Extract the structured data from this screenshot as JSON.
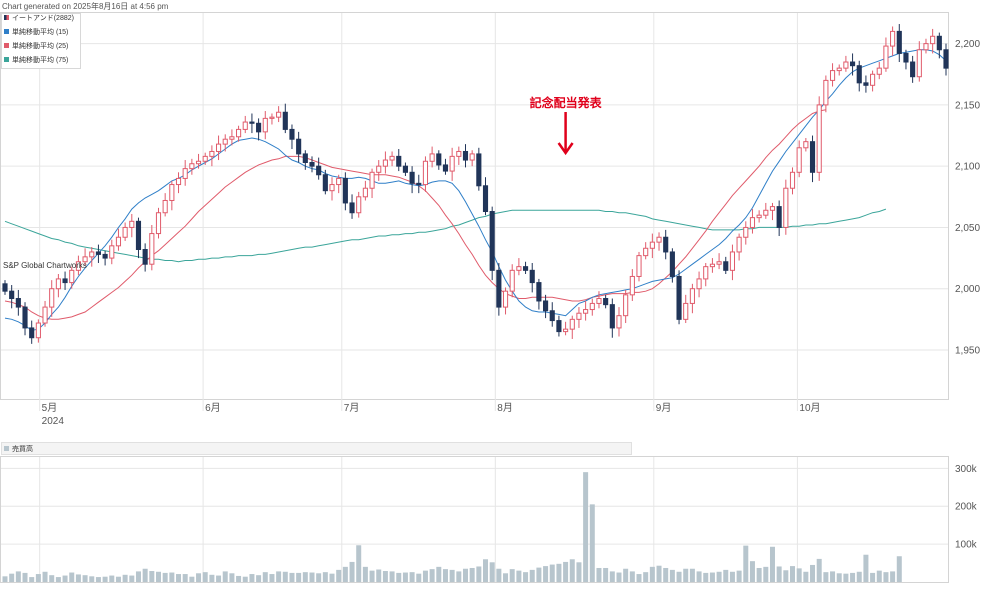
{
  "header": {
    "generated": "Chart generated on 2025年8月16日 at 4:56 pm"
  },
  "watermark": "S&P Global Chartworks",
  "annotation": {
    "text": "記念配当発表",
    "color": "#e0001b",
    "date_index": 84
  },
  "legend": [
    {
      "label": "イートアンド(2882)",
      "color": "#213559"
    },
    {
      "label": "単純移動平均 (15)",
      "color": "#2f7fc8"
    },
    {
      "label": "単純移動平均 (25)",
      "color": "#e05b6b"
    },
    {
      "label": "単純移動平均 (75)",
      "color": "#3ba59a"
    }
  ],
  "volume_legend": {
    "label": "売買高",
    "color": "#b7c5cd"
  },
  "colors": {
    "up": "#e05b6b",
    "down": "#213559",
    "volume": "#b7c5cd",
    "grid": "#e6e6e6"
  },
  "chart_data": [
    {
      "type": "candlestick",
      "title": "イートアンド(2882)",
      "x_labels": [
        "5月",
        "6月",
        "7月",
        "8月",
        "9月",
        "10月"
      ],
      "x_label_dates": [
        "2024-05-01",
        "2024-06-03",
        "2024-07-01",
        "2024-08-01",
        "2024-09-02",
        "2024-10-01"
      ],
      "year_label": "2024",
      "y_ticks": [
        1950,
        2000,
        2050,
        2100,
        2150,
        2200
      ],
      "ylim": [
        1910,
        2225
      ],
      "grid": true,
      "series": [
        {
          "name": "イートアンド(2882)",
          "closes": [
            1998,
            1992,
            1985,
            1968,
            1960,
            1972,
            1985,
            2000,
            2008,
            2005,
            2015,
            2022,
            2026,
            2030,
            2028,
            2025,
            2035,
            2042,
            2050,
            2055,
            2032,
            2020,
            2045,
            2062,
            2072,
            2085,
            2090,
            2098,
            2102,
            2104,
            2108,
            2112,
            2118,
            2122,
            2124,
            2130,
            2136,
            2135,
            2128,
            2139,
            2140,
            2144,
            2130,
            2122,
            2110,
            2103,
            2100,
            2093,
            2080,
            2085,
            2090,
            2070,
            2062,
            2075,
            2082,
            2095,
            2100,
            2105,
            2108,
            2100,
            2095,
            2086,
            2085,
            2104,
            2110,
            2101,
            2096,
            2108,
            2112,
            2105,
            2110,
            2084,
            2063,
            2015,
            1985,
            1998,
            2015,
            2018,
            2015,
            2005,
            1990,
            1982,
            1974,
            1965,
            1967,
            1975,
            1980,
            1983,
            1988,
            1992,
            1987,
            1968,
            1978,
            1995,
            2010,
            2027,
            2033,
            2038,
            2042,
            2030,
            2010,
            1975,
            1988,
            2000,
            2008,
            2018,
            2020,
            2022,
            2015,
            2030,
            2042,
            2050,
            2058,
            2060,
            2064,
            2067,
            2050,
            2082,
            2095,
            2115,
            2120,
            2095,
            2150,
            2170,
            2178,
            2180,
            2185,
            2182,
            2168,
            2166,
            2175,
            2180,
            2198,
            2210,
            2192,
            2185,
            2173,
            2195,
            2200,
            2206,
            2195,
            2180
          ]
        },
        {
          "name": "単純移動平均 (15)",
          "values": [
            1976,
            1975,
            1973,
            1970,
            1966,
            1967,
            1972,
            1979,
            1985,
            1993,
            2002,
            2010,
            2017,
            2023,
            2029,
            2035,
            2042,
            2050,
            2057,
            2065,
            2070,
            2074,
            2077,
            2080,
            2084,
            2088,
            2090,
            2093,
            2097,
            2100,
            2103,
            2106,
            2110,
            2114,
            2118,
            2121,
            2122,
            2123,
            2122,
            2120,
            2117,
            2114,
            2109,
            2105,
            2103,
            2100,
            2098,
            2097,
            2094,
            2092,
            2091,
            2090,
            2090,
            2091,
            2090,
            2088,
            2086,
            2086,
            2087,
            2088,
            2086,
            2085,
            2084,
            2085,
            2087,
            2088,
            2088,
            2086,
            2080,
            2071,
            2061,
            2051,
            2040,
            2030,
            2018,
            2007,
            1998,
            1990,
            1985,
            1982,
            1981,
            1981,
            1980,
            1979,
            1978,
            1983,
            1988,
            1990,
            1993,
            1995,
            1996,
            1997,
            1998,
            1999,
            2000,
            2002,
            2004,
            2006,
            2007,
            2008,
            2009,
            2012,
            2016,
            2020,
            2024,
            2028,
            2032,
            2036,
            2041,
            2047,
            2052,
            2058,
            2066,
            2076,
            2086,
            2096,
            2104,
            2112,
            2119,
            2126,
            2133,
            2140,
            2146,
            2153,
            2159,
            2166,
            2172,
            2177,
            2180,
            2182,
            2184,
            2186,
            2188,
            2190,
            2192,
            2193,
            2194,
            2195,
            2195,
            2194,
            2191,
            2186
          ]
        },
        {
          "name": "単純移動平均 (25)",
          "values": [
            1990,
            1989,
            1987,
            1985,
            1981,
            1978,
            1976,
            1975,
            1975,
            1976,
            1977,
            1979,
            1981,
            1985,
            1989,
            1993,
            1997,
            2001,
            2006,
            2011,
            2017,
            2022,
            2027,
            2031,
            2036,
            2041,
            2046,
            2051,
            2057,
            2063,
            2068,
            2073,
            2078,
            2083,
            2087,
            2091,
            2095,
            2098,
            2101,
            2103,
            2105,
            2106,
            2108,
            2108,
            2108,
            2107,
            2105,
            2103,
            2101,
            2099,
            2098,
            2097,
            2096,
            2095,
            2094,
            2093,
            2093,
            2093,
            2092,
            2091,
            2089,
            2087,
            2084,
            2080,
            2074,
            2068,
            2060,
            2053,
            2045,
            2036,
            2028,
            2019,
            2011,
            2005,
            2000,
            1996,
            1994,
            1992,
            1992,
            1993,
            1993,
            1993,
            1993,
            1992,
            1991,
            1990,
            1990,
            1991,
            1993,
            1994,
            1995,
            1996,
            1996,
            1996,
            1997,
            1997,
            1998,
            2000,
            2004,
            2009,
            2014,
            2020,
            2026,
            2033,
            2040,
            2047,
            2055,
            2062,
            2069,
            2076,
            2082,
            2088,
            2094,
            2100,
            2107,
            2113,
            2118,
            2124,
            2130,
            2135,
            2139,
            2143,
            2145,
            2146
          ]
        },
        {
          "name": "単純移動平均 (75)",
          "values": [
            2055,
            2053,
            2051,
            2049,
            2047,
            2045,
            2043,
            2041,
            2040,
            2038,
            2037,
            2035,
            2034,
            2033,
            2032,
            2031,
            2030,
            2029,
            2028,
            2027,
            2026,
            2025,
            2024,
            2024,
            2023,
            2023,
            2022,
            2023,
            2023,
            2024,
            2024,
            2025,
            2025,
            2026,
            2026,
            2027,
            2027,
            2027,
            2028,
            2028,
            2029,
            2030,
            2031,
            2032,
            2033,
            2034,
            2034,
            2035,
            2036,
            2037,
            2038,
            2039,
            2040,
            2040,
            2041,
            2042,
            2043,
            2043,
            2044,
            2044,
            2045,
            2045,
            2046,
            2046,
            2047,
            2048,
            2049,
            2051,
            2052,
            2054,
            2056,
            2058,
            2059,
            2061,
            2062,
            2063,
            2064,
            2064,
            2064,
            2064,
            2064,
            2064,
            2064,
            2064,
            2064,
            2064,
            2064,
            2064,
            2064,
            2064,
            2063,
            2063,
            2062,
            2062,
            2061,
            2060,
            2059,
            2057,
            2056,
            2055,
            2054,
            2053,
            2052,
            2051,
            2050,
            2049,
            2048,
            2048,
            2048,
            2048,
            2048,
            2049,
            2049,
            2050,
            2050,
            2050,
            2050,
            2050,
            2051,
            2051,
            2052,
            2052,
            2053,
            2053,
            2054,
            2055,
            2056,
            2057,
            2058,
            2060,
            2062,
            2063,
            2065
          ]
        }
      ]
    },
    {
      "type": "bar",
      "title": "売買高",
      "y_ticks": [
        100000,
        200000,
        300000
      ],
      "y_tick_labels": [
        "100k",
        "200k",
        "300k"
      ],
      "ylim": [
        0,
        330000
      ],
      "values": [
        15000,
        22000,
        28000,
        24000,
        13000,
        21000,
        27000,
        18000,
        13000,
        17000,
        25000,
        20000,
        18000,
        15000,
        13000,
        14000,
        17000,
        14000,
        19000,
        17000,
        28000,
        35000,
        29000,
        27000,
        24000,
        25000,
        21000,
        21000,
        14000,
        23000,
        26000,
        19000,
        17000,
        28000,
        23000,
        16000,
        14000,
        21000,
        18000,
        26000,
        21000,
        28000,
        27000,
        24000,
        24000,
        26000,
        25000,
        23000,
        26000,
        22000,
        32000,
        40000,
        53000,
        97000,
        40000,
        30000,
        33000,
        29000,
        28000,
        24000,
        25000,
        26000,
        22000,
        30000,
        34000,
        40000,
        34000,
        32000,
        28000,
        35000,
        37000,
        41000,
        60000,
        52000,
        35000,
        23000,
        34000,
        30000,
        26000,
        32000,
        38000,
        42000,
        46000,
        48000,
        53000,
        60000,
        52000,
        290000,
        205000,
        37000,
        37000,
        28000,
        25000,
        35000,
        28000,
        21000,
        26000,
        40000,
        43000,
        37000,
        32000,
        27000,
        35000,
        35000,
        28000,
        24000,
        25000,
        27000,
        32000,
        27000,
        30000,
        96000,
        55000,
        37000,
        40000,
        93000,
        41000,
        31000,
        42000,
        36000,
        27000,
        45000,
        61000,
        26000,
        28000,
        23000,
        22000,
        24000,
        27000,
        72000,
        24000,
        30000,
        26000,
        28000,
        68000
      ]
    }
  ]
}
